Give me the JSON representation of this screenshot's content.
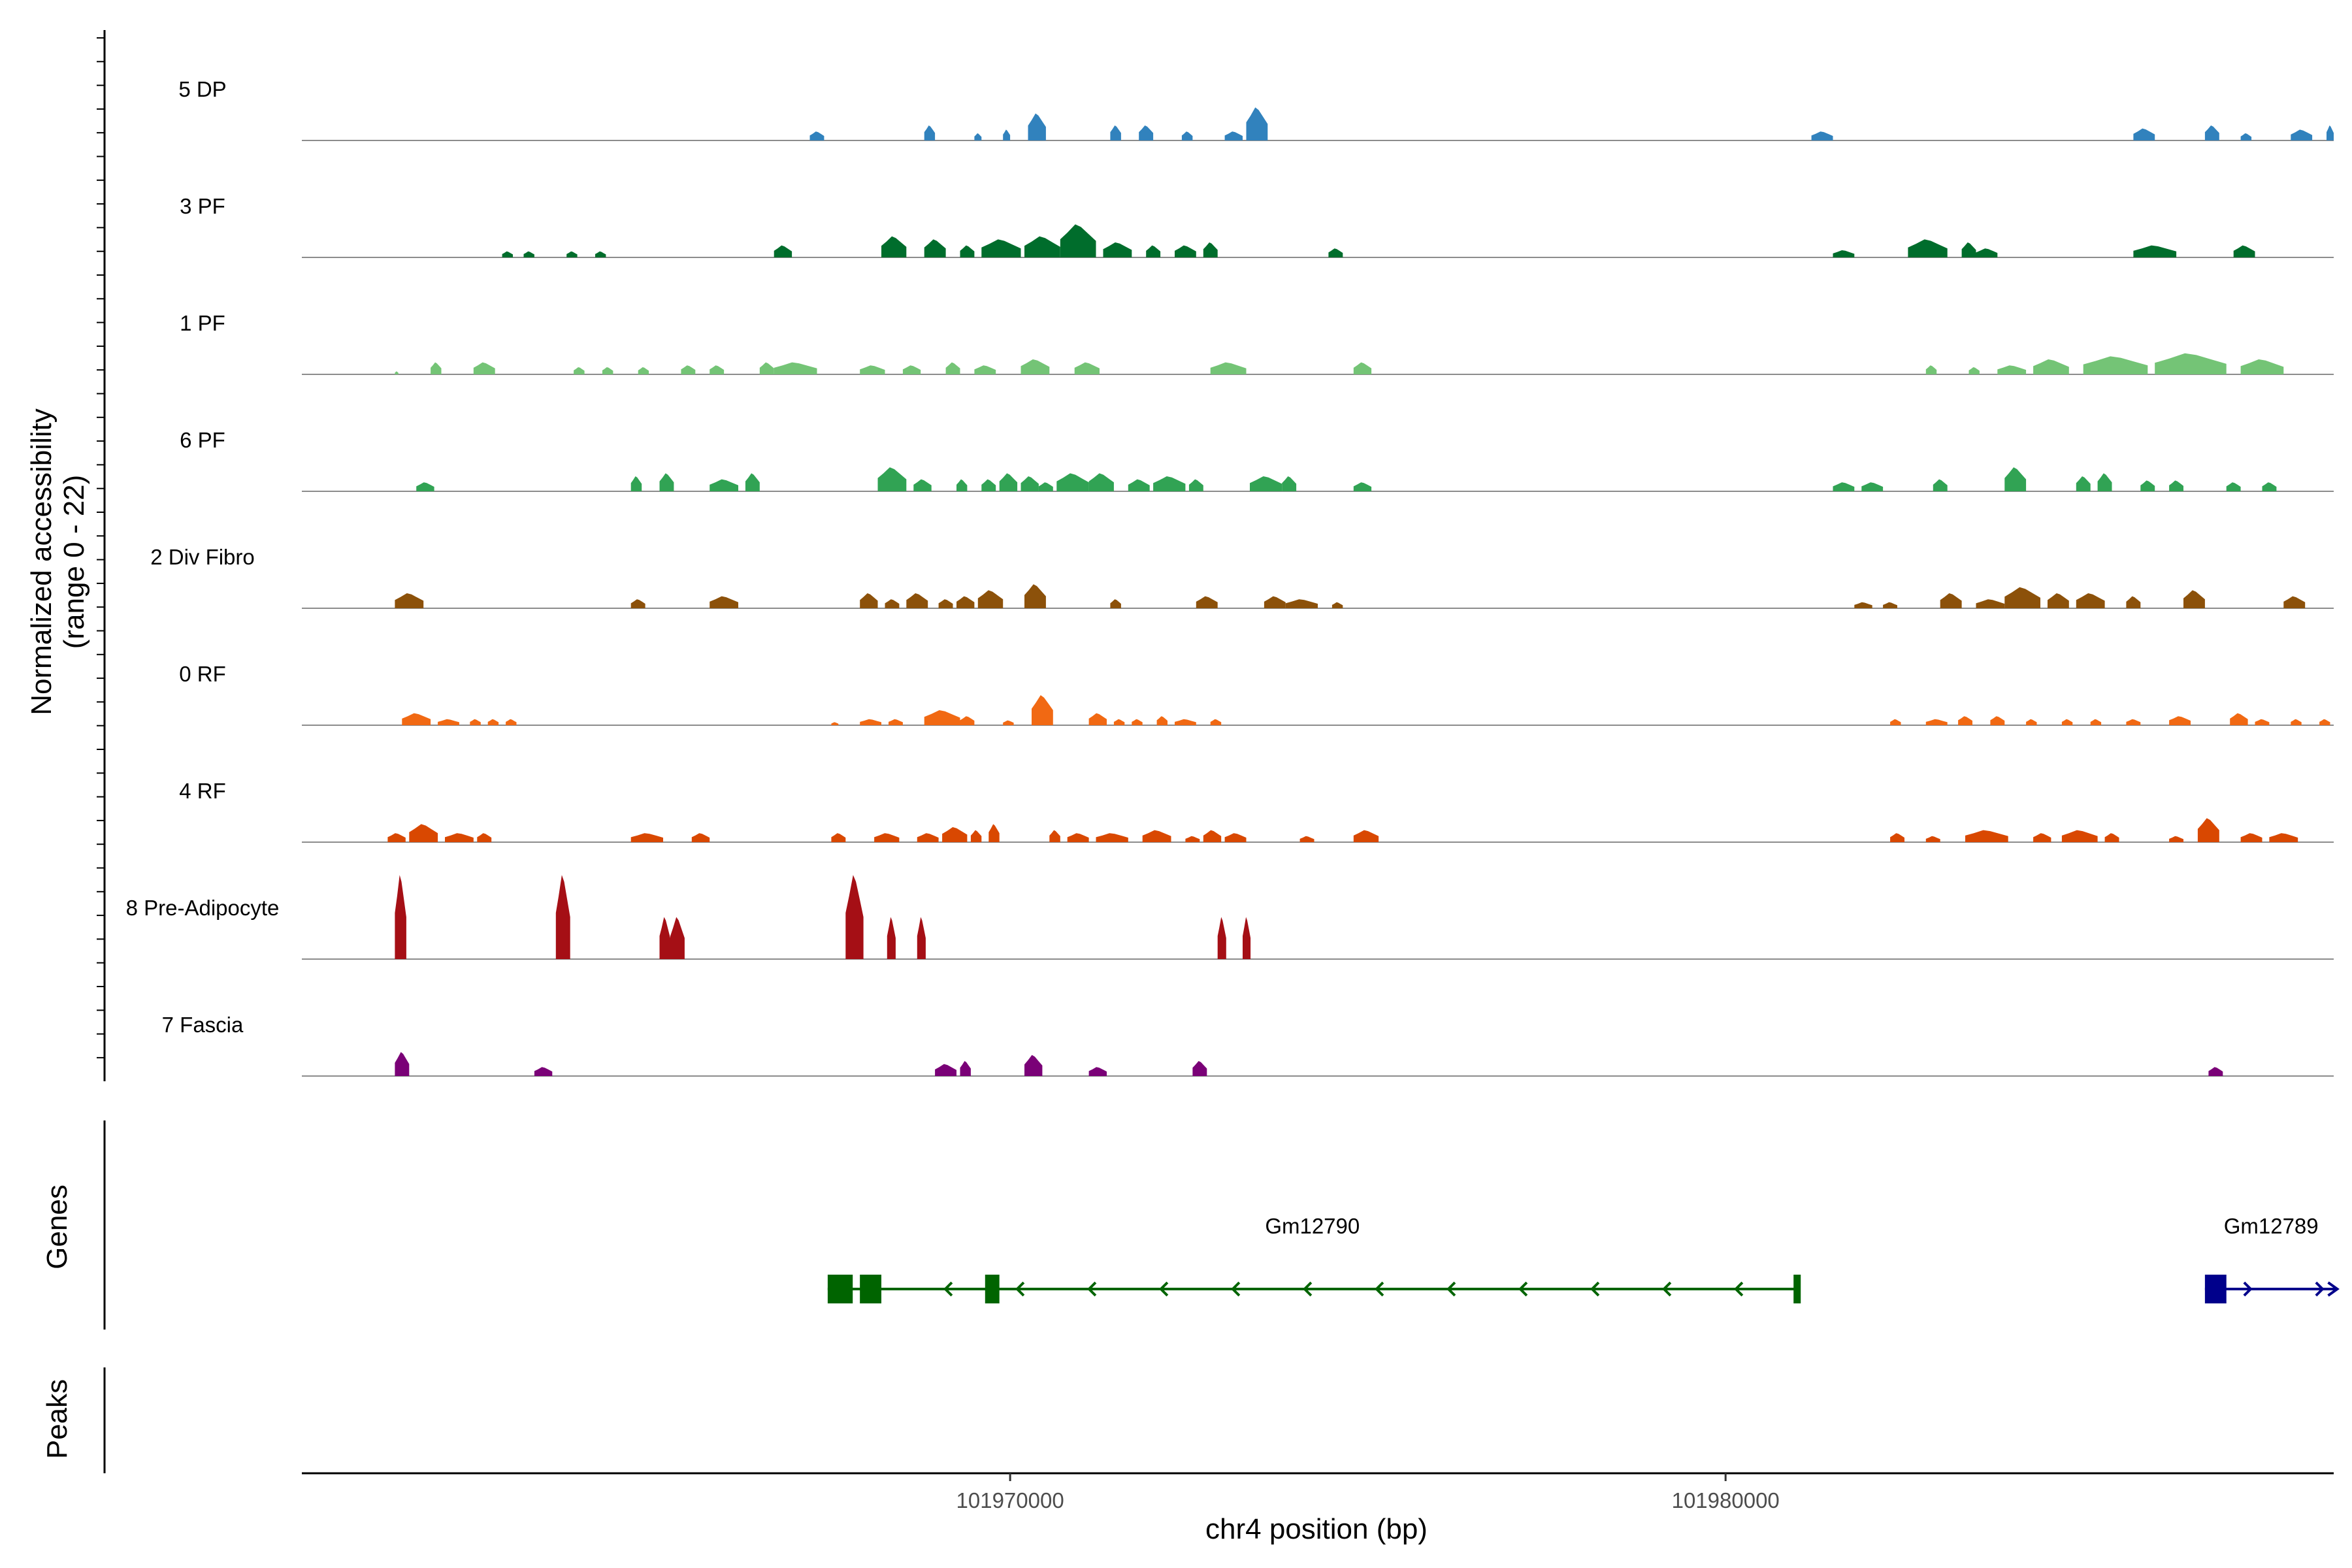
{
  "chart_data": {
    "type": "coverage-track",
    "ylabel": "Normalized accessibility",
    "ylabel_range": "(range 0 - 22)",
    "ylim": [
      0,
      22
    ],
    "xlabel": "chr4 position (bp)",
    "xlim": [
      101960100,
      101988500
    ],
    "x_ticks": [
      {
        "value": 101970000,
        "label": "101970000"
      },
      {
        "value": 101980000,
        "label": "101980000"
      }
    ],
    "tracks": [
      {
        "name": "5 DP",
        "color": "#3182bd",
        "peaks": [
          [
            101967200,
            101967400,
            1.5
          ],
          [
            101968800,
            101968950,
            2.5
          ],
          [
            101969500,
            101969600,
            1.2
          ],
          [
            101969900,
            101970000,
            1.8
          ],
          [
            101970250,
            101970500,
            4.5
          ],
          [
            101971400,
            101971550,
            2.5
          ],
          [
            101971800,
            101972000,
            2.5
          ],
          [
            101972400,
            101972550,
            1.5
          ],
          [
            101973000,
            101973250,
            1.5
          ],
          [
            101973300,
            101973600,
            5.5
          ],
          [
            101981200,
            101981500,
            1.5
          ],
          [
            101985700,
            101986000,
            2.0
          ],
          [
            101986700,
            101986900,
            2.5
          ],
          [
            101987200,
            101987350,
            1.2
          ],
          [
            101987900,
            101988200,
            1.8
          ],
          [
            101988400,
            101988500,
            2.5
          ]
        ]
      },
      {
        "name": "3 PF",
        "color": "#006d2c",
        "peaks": [
          [
            101962900,
            101963050,
            1.0
          ],
          [
            101963200,
            101963350,
            1.0
          ],
          [
            101963800,
            101963950,
            1.0
          ],
          [
            101964200,
            101964350,
            1.0
          ],
          [
            101966700,
            101966950,
            2.0
          ],
          [
            101968200,
            101968550,
            3.5
          ],
          [
            101968800,
            101969100,
            3.0
          ],
          [
            101969300,
            101969500,
            2.0
          ],
          [
            101969600,
            101970150,
            3.0
          ],
          [
            101970200,
            101970700,
            3.5
          ],
          [
            101970700,
            101971200,
            5.5
          ],
          [
            101971300,
            101971700,
            2.5
          ],
          [
            101971900,
            101972100,
            2.0
          ],
          [
            101972300,
            101972600,
            2.0
          ],
          [
            101972700,
            101972900,
            2.5
          ],
          [
            101974450,
            101974650,
            1.5
          ],
          [
            101981500,
            101981800,
            1.2
          ],
          [
            101982550,
            101983100,
            3.0
          ],
          [
            101983300,
            101983500,
            2.5
          ],
          [
            101983500,
            101983800,
            1.5
          ],
          [
            101985700,
            101986300,
            2.0
          ],
          [
            101987100,
            101987400,
            2.0
          ]
        ]
      },
      {
        "name": "1 PF",
        "color": "#74c476",
        "peaks": [
          [
            101961400,
            101961450,
            0.5
          ],
          [
            101961900,
            101962050,
            2.0
          ],
          [
            101962500,
            101962800,
            2.0
          ],
          [
            101963900,
            101964050,
            1.2
          ],
          [
            101964300,
            101964450,
            1.2
          ],
          [
            101964800,
            101964950,
            1.2
          ],
          [
            101965400,
            101965600,
            1.5
          ],
          [
            101965800,
            101966000,
            1.5
          ],
          [
            101966500,
            101966700,
            2.0
          ],
          [
            101966700,
            101967300,
            2.0
          ],
          [
            101967900,
            101968250,
            1.5
          ],
          [
            101968500,
            101968750,
            1.5
          ],
          [
            101969100,
            101969300,
            2.0
          ],
          [
            101969500,
            101969800,
            1.5
          ],
          [
            101970150,
            101970550,
            2.5
          ],
          [
            101970900,
            101971250,
            2.0
          ],
          [
            101972800,
            101973300,
            2.0
          ],
          [
            101974800,
            101975050,
            2.0
          ],
          [
            101982800,
            101982950,
            1.5
          ],
          [
            101983400,
            101983550,
            1.2
          ],
          [
            101983800,
            101984200,
            1.5
          ],
          [
            101984300,
            101984800,
            2.5
          ],
          [
            101985000,
            101985900,
            3.0
          ],
          [
            101986000,
            101987000,
            3.5
          ],
          [
            101987200,
            101987800,
            2.5
          ]
        ]
      },
      {
        "name": "6 PF",
        "color": "#31a354",
        "peaks": [
          [
            101961700,
            101961950,
            1.5
          ],
          [
            101964700,
            101964850,
            2.5
          ],
          [
            101965100,
            101965300,
            3.0
          ],
          [
            101965800,
            101966200,
            2.0
          ],
          [
            101966300,
            101966500,
            3.0
          ],
          [
            101968150,
            101968550,
            4.0
          ],
          [
            101968650,
            101968900,
            2.0
          ],
          [
            101969250,
            101969400,
            2.0
          ],
          [
            101969600,
            101969800,
            2.0
          ],
          [
            101969850,
            101970100,
            3.0
          ],
          [
            101970150,
            101970400,
            2.5
          ],
          [
            101970400,
            101970600,
            1.5
          ],
          [
            101970650,
            101971100,
            3.0
          ],
          [
            101971100,
            101971450,
            3.0
          ],
          [
            101971650,
            101971950,
            2.0
          ],
          [
            101972000,
            101972450,
            2.5
          ],
          [
            101972500,
            101972700,
            2.0
          ],
          [
            101973350,
            101973800,
            2.5
          ],
          [
            101973800,
            101974000,
            2.5
          ],
          [
            101974800,
            101975050,
            1.5
          ],
          [
            101981500,
            101981800,
            1.5
          ],
          [
            101981900,
            101982200,
            1.5
          ],
          [
            101982900,
            101983100,
            2.0
          ],
          [
            101983900,
            101984200,
            4.0
          ],
          [
            101984900,
            101985100,
            2.5
          ],
          [
            101985200,
            101985400,
            3.0
          ],
          [
            101985800,
            101986000,
            1.8
          ],
          [
            101986200,
            101986400,
            1.8
          ],
          [
            101987000,
            101987200,
            1.5
          ],
          [
            101987500,
            101987700,
            1.5
          ]
        ]
      },
      {
        "name": "2 Div Fibro",
        "color": "#8c510a",
        "peaks": [
          [
            101961400,
            101961800,
            2.5
          ],
          [
            101964700,
            101964900,
            1.5
          ],
          [
            101965800,
            101966200,
            2.0
          ],
          [
            101967900,
            101968150,
            2.5
          ],
          [
            101968250,
            101968450,
            1.5
          ],
          [
            101968550,
            101968850,
            2.5
          ],
          [
            101969000,
            101969200,
            1.5
          ],
          [
            101969250,
            101969500,
            2.0
          ],
          [
            101969550,
            101969900,
            3.0
          ],
          [
            101970200,
            101970500,
            4.0
          ],
          [
            101971400,
            101971550,
            1.5
          ],
          [
            101972600,
            101972900,
            2.0
          ],
          [
            101973550,
            101973850,
            2.0
          ],
          [
            101973850,
            101974300,
            1.5
          ],
          [
            101974500,
            101974650,
            1.0
          ],
          [
            101981800,
            101982050,
            1.0
          ],
          [
            101982200,
            101982400,
            1.0
          ],
          [
            101983000,
            101983300,
            2.5
          ],
          [
            101983500,
            101983900,
            1.5
          ],
          [
            101983900,
            101984400,
            3.5
          ],
          [
            101984500,
            101984800,
            2.5
          ],
          [
            101984900,
            101985300,
            2.5
          ],
          [
            101985600,
            101985800,
            2.0
          ],
          [
            101986400,
            101986700,
            3.0
          ],
          [
            101987800,
            101988100,
            2.0
          ]
        ]
      },
      {
        "name": "0 RF",
        "color": "#f16913",
        "peaks": [
          [
            101961500,
            101961900,
            2.0
          ],
          [
            101962000,
            101962300,
            1.0
          ],
          [
            101962450,
            101962600,
            1.0
          ],
          [
            101962700,
            101962850,
            1.0
          ],
          [
            101962950,
            101963100,
            1.0
          ],
          [
            101967500,
            101967600,
            0.5
          ],
          [
            101967900,
            101968200,
            1.0
          ],
          [
            101968300,
            101968500,
            1.0
          ],
          [
            101968800,
            101969300,
            2.5
          ],
          [
            101969300,
            101969500,
            1.5
          ],
          [
            101969900,
            101970050,
            0.8
          ],
          [
            101970300,
            101970600,
            5.0
          ],
          [
            101971100,
            101971350,
            2.0
          ],
          [
            101971450,
            101971600,
            1.0
          ],
          [
            101971700,
            101971850,
            1.0
          ],
          [
            101972050,
            101972200,
            1.5
          ],
          [
            101972300,
            101972600,
            1.0
          ],
          [
            101972800,
            101972950,
            1.0
          ],
          [
            101982300,
            101982450,
            1.0
          ],
          [
            101982800,
            101983100,
            1.0
          ],
          [
            101983250,
            101983450,
            1.5
          ],
          [
            101983700,
            101983900,
            1.5
          ],
          [
            101984200,
            101984350,
            1.0
          ],
          [
            101984700,
            101984850,
            1.0
          ],
          [
            101985100,
            101985250,
            1.0
          ],
          [
            101985600,
            101985800,
            1.0
          ],
          [
            101986200,
            101986500,
            1.5
          ],
          [
            101987050,
            101987300,
            2.0
          ],
          [
            101987400,
            101987600,
            1.0
          ],
          [
            101987900,
            101988050,
            1.0
          ],
          [
            101988300,
            101988450,
            1.0
          ]
        ]
      },
      {
        "name": "4 RF",
        "color": "#d94801",
        "peaks": [
          [
            101961300,
            101961550,
            1.5
          ],
          [
            101961600,
            101962000,
            3.0
          ],
          [
            101962100,
            101962500,
            1.5
          ],
          [
            101962550,
            101962750,
            1.5
          ],
          [
            101964700,
            101965150,
            1.5
          ],
          [
            101965550,
            101965800,
            1.5
          ],
          [
            101967500,
            101967700,
            1.5
          ],
          [
            101968100,
            101968450,
            1.5
          ],
          [
            101968700,
            101969000,
            1.5
          ],
          [
            101969050,
            101969400,
            2.5
          ],
          [
            101969450,
            101969600,
            2.0
          ],
          [
            101969700,
            101969850,
            3.0
          ],
          [
            101970550,
            101970700,
            2.0
          ],
          [
            101970800,
            101971100,
            1.5
          ],
          [
            101971200,
            101971650,
            1.5
          ],
          [
            101971850,
            101972250,
            2.0
          ],
          [
            101972450,
            101972650,
            1.0
          ],
          [
            101972700,
            101972950,
            2.0
          ],
          [
            101973000,
            101973300,
            1.5
          ],
          [
            101974050,
            101974250,
            1.0
          ],
          [
            101974800,
            101975150,
            2.0
          ],
          [
            101982300,
            101982500,
            1.5
          ],
          [
            101982800,
            101983000,
            1.0
          ],
          [
            101983350,
            101983950,
            2.0
          ],
          [
            101984300,
            101984550,
            1.5
          ],
          [
            101984700,
            101985200,
            2.0
          ],
          [
            101985300,
            101985500,
            1.5
          ],
          [
            101986200,
            101986400,
            1.0
          ],
          [
            101986600,
            101986900,
            4.0
          ],
          [
            101987200,
            101987500,
            1.5
          ],
          [
            101987600,
            101988000,
            1.5
          ]
        ]
      },
      {
        "name": "8 Pre-Adipocyte",
        "color": "#a50f15",
        "peaks": [
          [
            101961400,
            101961560,
            14.0
          ],
          [
            101963650,
            101963850,
            14.0
          ],
          [
            101965100,
            101965250,
            7.0
          ],
          [
            101965250,
            101965450,
            7.0
          ],
          [
            101967700,
            101967950,
            14.0
          ],
          [
            101968280,
            101968400,
            7.0
          ],
          [
            101968700,
            101968820,
            7.0
          ],
          [
            101972900,
            101973020,
            7.0
          ],
          [
            101973250,
            101973360,
            7.0
          ]
        ]
      },
      {
        "name": "7 Fascia",
        "color": "#7a0177",
        "peaks": [
          [
            101961400,
            101961600,
            4.0
          ],
          [
            101963350,
            101963600,
            1.5
          ],
          [
            101968950,
            101969250,
            2.0
          ],
          [
            101969300,
            101969450,
            2.5
          ],
          [
            101970200,
            101970450,
            3.5
          ],
          [
            101971100,
            101971350,
            1.5
          ],
          [
            101972550,
            101972750,
            2.5
          ],
          [
            101986750,
            101986950,
            1.5
          ]
        ]
      }
    ],
    "genes_label": "Genes",
    "peaks_label": "Peaks",
    "genes": [
      {
        "name": "Gm12790",
        "strand": "-",
        "color": "#006400",
        "start": 101967450,
        "end": 101981000,
        "exons": [
          [
            101967450,
            101967800
          ],
          [
            101967900,
            101968200
          ],
          [
            101969650,
            101969850
          ],
          [
            101980950,
            101981050
          ]
        ]
      },
      {
        "name": "Gm12789",
        "strand": "+",
        "color": "#00008b",
        "start": 101986700,
        "end": 101988550,
        "exons": [
          [
            101986700,
            101987000
          ]
        ]
      }
    ]
  }
}
